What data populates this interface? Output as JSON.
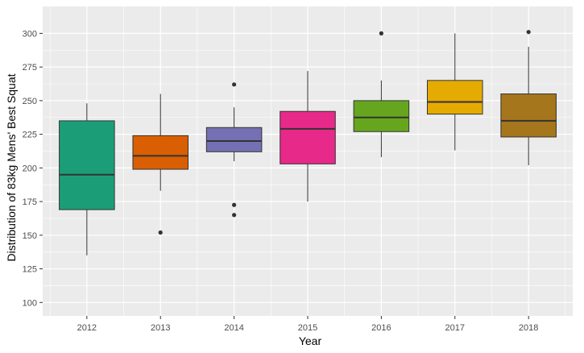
{
  "chart_data": {
    "type": "box",
    "xlabel": "Year",
    "ylabel": "Distribution of 83kg Mens' Best Squat",
    "ylim": [
      90,
      320
    ],
    "yticks": [
      100,
      125,
      150,
      175,
      200,
      225,
      250,
      275,
      300
    ],
    "grid": true,
    "legend": "none",
    "panel_background": "#ebebeb",
    "grid_color": "#ffffff",
    "categories": [
      "2012",
      "2013",
      "2014",
      "2015",
      "2016",
      "2017",
      "2018"
    ],
    "boxes": [
      {
        "category": "2012",
        "min": 135,
        "q1": 169,
        "median": 195,
        "q3": 235,
        "max": 248,
        "outliers": [],
        "color": "#1b9e77"
      },
      {
        "category": "2013",
        "min": 183,
        "q1": 199,
        "median": 209,
        "q3": 224,
        "max": 255,
        "outliers": [
          152
        ],
        "color": "#d95f02"
      },
      {
        "category": "2014",
        "min": 205,
        "q1": 212,
        "median": 220,
        "q3": 230,
        "max": 245,
        "outliers": [
          262,
          172.5,
          165
        ],
        "color": "#7570b3"
      },
      {
        "category": "2015",
        "min": 175,
        "q1": 203,
        "median": 229,
        "q3": 242,
        "max": 272,
        "outliers": [],
        "color": "#e7298a"
      },
      {
        "category": "2016",
        "min": 208,
        "q1": 227,
        "median": 237.5,
        "q3": 250,
        "max": 265,
        "outliers": [
          300
        ],
        "color": "#66a61e"
      },
      {
        "category": "2017",
        "min": 213,
        "q1": 240,
        "median": 249,
        "q3": 265,
        "max": 300,
        "outliers": [],
        "color": "#e6ab02"
      },
      {
        "category": "2018",
        "min": 202,
        "q1": 223,
        "median": 235,
        "q3": 255,
        "max": 290,
        "outliers": [
          301
        ],
        "color": "#a6761d"
      }
    ]
  }
}
